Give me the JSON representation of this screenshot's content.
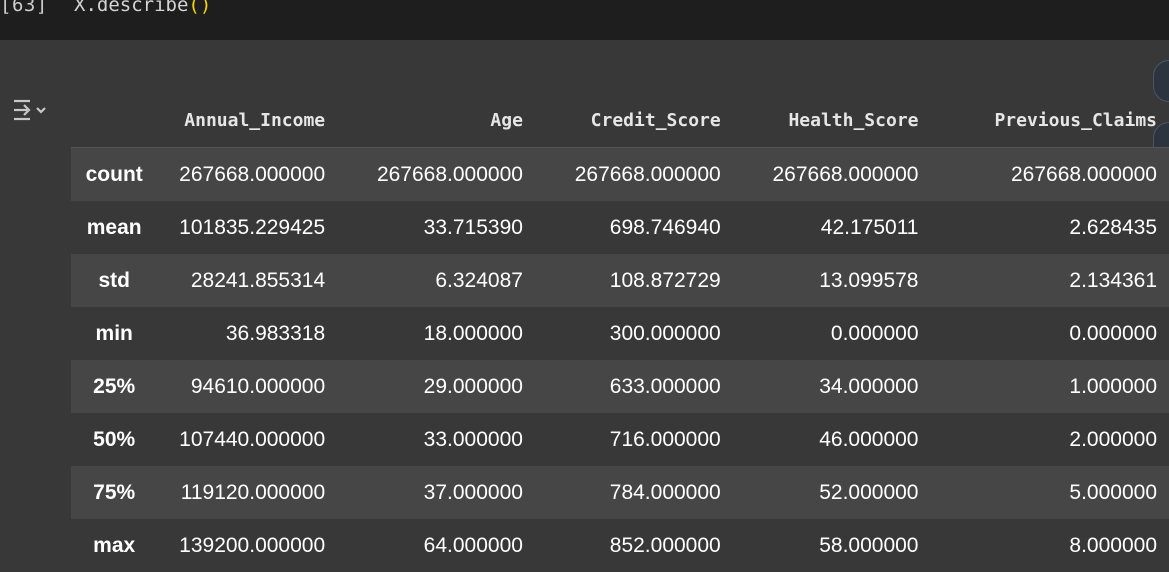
{
  "cell": {
    "exec_count": "[63]",
    "code_prefix": "X.describe",
    "code_parens": "()"
  },
  "output": {
    "icon": "output-toggle-icon",
    "columns": [
      "Annual_Income",
      "Age",
      "Credit_Score",
      "Health_Score",
      "Previous_Claims"
    ],
    "rows": [
      {
        "label": "count",
        "values": [
          "267668.000000",
          "267668.000000",
          "267668.000000",
          "267668.000000",
          "267668.000000"
        ]
      },
      {
        "label": "mean",
        "values": [
          "101835.229425",
          "33.715390",
          "698.746940",
          "42.175011",
          "2.628435"
        ]
      },
      {
        "label": "std",
        "values": [
          "28241.855314",
          "6.324087",
          "108.872729",
          "13.099578",
          "2.134361"
        ]
      },
      {
        "label": "min",
        "values": [
          "36.983318",
          "18.000000",
          "300.000000",
          "0.000000",
          "0.000000"
        ]
      },
      {
        "label": "25%",
        "values": [
          "94610.000000",
          "29.000000",
          "633.000000",
          "34.000000",
          "1.000000"
        ]
      },
      {
        "label": "50%",
        "values": [
          "107440.000000",
          "33.000000",
          "716.000000",
          "46.000000",
          "2.000000"
        ]
      },
      {
        "label": "75%",
        "values": [
          "119120.000000",
          "37.000000",
          "784.000000",
          "52.000000",
          "5.000000"
        ]
      },
      {
        "label": "max",
        "values": [
          "139200.000000",
          "64.000000",
          "852.000000",
          "58.000000",
          "8.000000"
        ]
      }
    ]
  },
  "colors": {
    "code_background": "#1e1e1e",
    "output_background": "#383838",
    "striped_row": "#464646",
    "paren_color": "#f5d400"
  }
}
